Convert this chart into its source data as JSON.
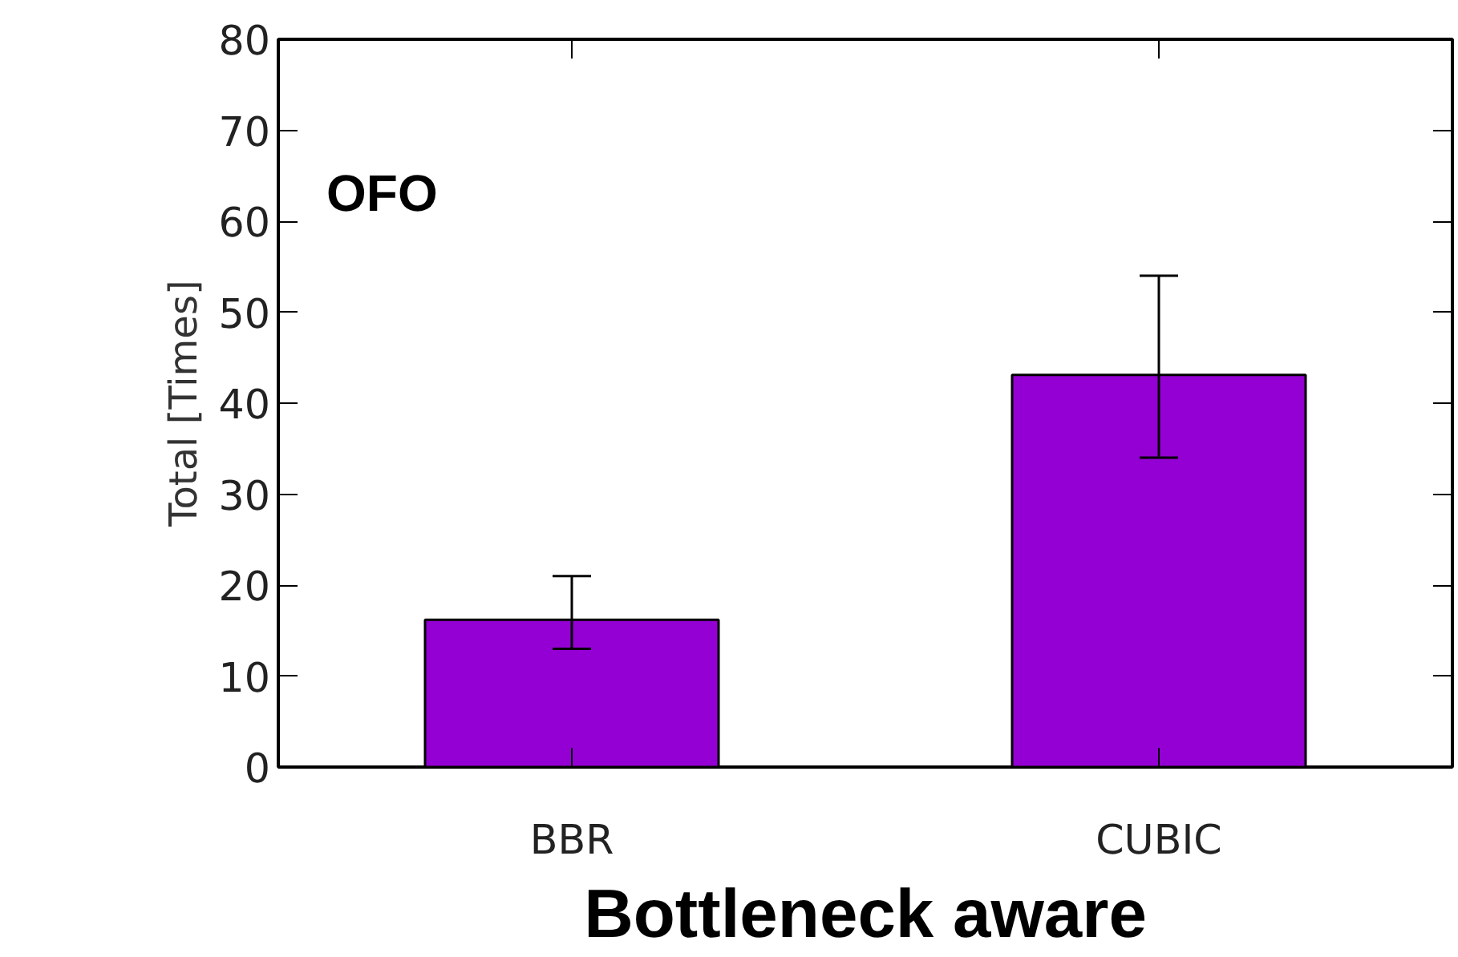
{
  "chart_data": {
    "type": "bar",
    "categories": [
      "BBR",
      "CUBIC"
    ],
    "values": [
      16.2,
      43.1
    ],
    "color": "#9400d3",
    "errors": [
      [
        13,
        21
      ],
      [
        34,
        54
      ]
    ],
    "ylim": [
      0,
      80
    ],
    "yticks": [
      0,
      10,
      20,
      30,
      40,
      50,
      60,
      70,
      80
    ],
    "ylabel": "Total [Times]",
    "xlabel": "Bottleneck aware",
    "annotations": [
      "OFO"
    ],
    "grid": false
  }
}
